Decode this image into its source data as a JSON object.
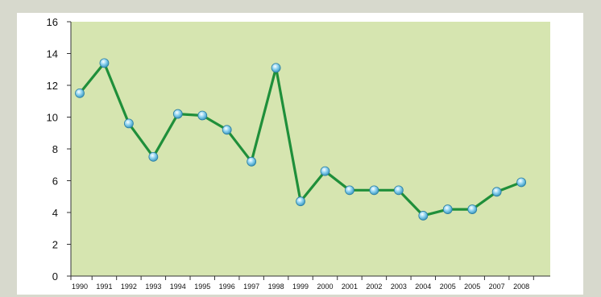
{
  "chart_data": {
    "type": "line",
    "categories": [
      "1990",
      "1991",
      "1992",
      "1993",
      "1994",
      "1995",
      "1996",
      "1997",
      "1998",
      "1999",
      "2000",
      "2001",
      "2002",
      "2003",
      "2004",
      "2005",
      "2005",
      "2007",
      "2008"
    ],
    "series": [
      {
        "values": [
          11.5,
          13.4,
          9.6,
          7.5,
          10.2,
          10.1,
          9.2,
          7.2,
          13.1,
          4.7,
          6.6,
          5.4,
          5.4,
          5.4,
          3.8,
          4.2,
          4.2,
          5.3,
          5.9
        ]
      }
    ],
    "ylim": [
      0,
      16
    ],
    "yticks": [
      "0",
      "2",
      "4",
      "6",
      "8",
      "10",
      "12",
      "14",
      "16"
    ],
    "grid": false,
    "colors": {
      "plot_background": "#d6e5b0",
      "line": "#1f8f3a",
      "marker": "#79c9ea",
      "page_background": "#d7d9cd"
    }
  }
}
